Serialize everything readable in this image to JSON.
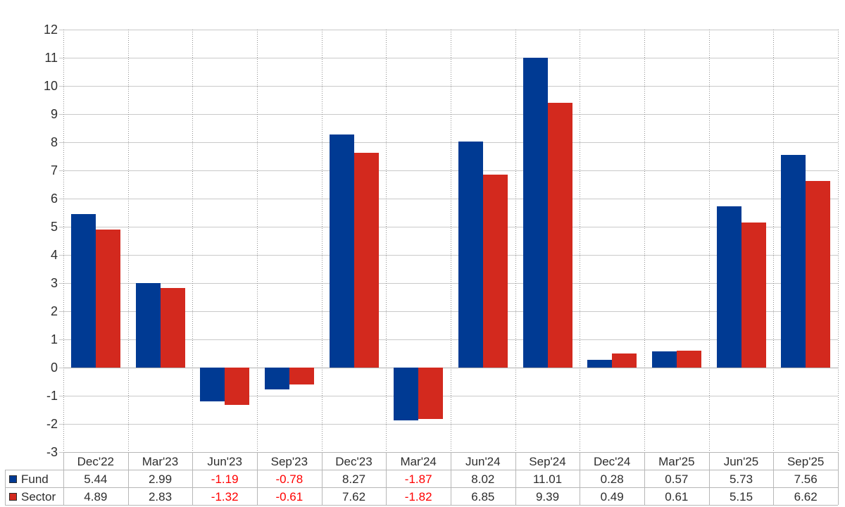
{
  "chart_data": {
    "type": "bar",
    "title": "",
    "categories": [
      "Dec'22",
      "Mar'23",
      "Jun'23",
      "Sep'23",
      "Dec'23",
      "Mar'24",
      "Jun'24",
      "Sep'24",
      "Dec'24",
      "Mar'25",
      "Jun'25",
      "Sep'25"
    ],
    "series": [
      {
        "name": "Fund",
        "color": "#003a93",
        "values": [
          5.44,
          2.99,
          -1.19,
          -0.78,
          8.27,
          -1.87,
          8.02,
          11.01,
          0.28,
          0.57,
          5.73,
          7.56
        ]
      },
      {
        "name": "Sector",
        "color": "#d3291e",
        "values": [
          4.89,
          2.83,
          -1.32,
          -0.61,
          7.62,
          -1.82,
          6.85,
          9.39,
          0.49,
          0.61,
          5.15,
          6.62
        ]
      }
    ],
    "xlabel": "",
    "ylabel": "",
    "ylim": [
      -3,
      12
    ],
    "ytick_step": 1,
    "yticks": [
      -3,
      -2,
      -1,
      0,
      1,
      2,
      3,
      4,
      5,
      6,
      7,
      8,
      9,
      10,
      11,
      12
    ],
    "grid": {
      "horizontal": "solid",
      "vertical": "dotted"
    },
    "legend_position": "data-table-left",
    "data_table_shown": true,
    "value_decimals": 2,
    "colors": {
      "negative_value_text": "#ff0000",
      "text": "#2e2e2e",
      "h_gridline": "#c9c9c9",
      "v_gridline": "#8f8f8f",
      "zero_axis": "#b0b0b0",
      "table_border": "#b7b7b7",
      "background": "#ffffff"
    }
  }
}
